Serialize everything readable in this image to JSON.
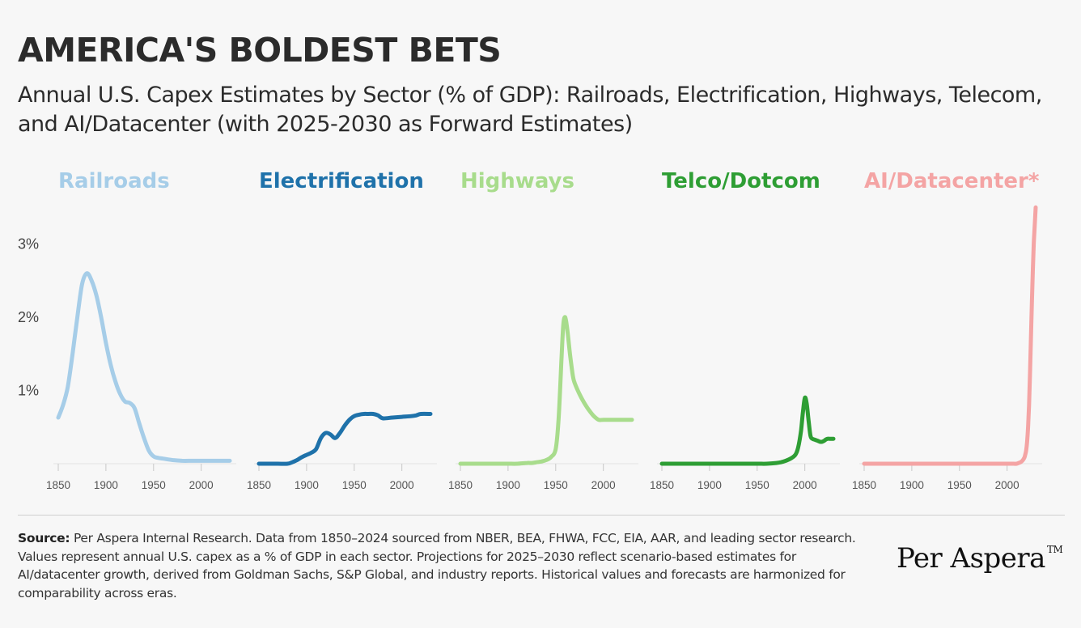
{
  "header": {
    "title": "AMERICA'S BOLDEST BETS",
    "subtitle": "Annual U.S. Capex Estimates by Sector (% of GDP): Railroads, Electrification, Highways, Telecom, and AI/Datacenter (with 2025-2030 as Forward Estimates)"
  },
  "chart_data": {
    "type": "line",
    "layout": "small-multiples",
    "x_ticks": [
      1850,
      1900,
      1950,
      2000
    ],
    "xlim": [
      1850,
      2030
    ],
    "y_ticks": [
      1,
      2,
      3
    ],
    "y_tick_labels": [
      "1%",
      "2%",
      "3%"
    ],
    "ylim": [
      0,
      3.5
    ],
    "grid": false,
    "series": [
      {
        "name": "Railroads",
        "color": "#a6cde8",
        "x": [
          1850,
          1855,
          1860,
          1865,
          1870,
          1875,
          1880,
          1885,
          1890,
          1895,
          1900,
          1905,
          1910,
          1915,
          1920,
          1925,
          1930,
          1935,
          1940,
          1945,
          1950,
          1955,
          1960,
          1970,
          1980,
          1990,
          2000,
          2010,
          2020,
          2030
        ],
        "y": [
          0.63,
          0.8,
          1.05,
          1.5,
          2.0,
          2.45,
          2.6,
          2.5,
          2.3,
          2.0,
          1.65,
          1.35,
          1.12,
          0.95,
          0.85,
          0.83,
          0.76,
          0.55,
          0.35,
          0.18,
          0.1,
          0.08,
          0.07,
          0.05,
          0.04,
          0.04,
          0.04,
          0.04,
          0.04,
          0.04
        ]
      },
      {
        "name": "Electrification",
        "color": "#1f72aa",
        "x": [
          1850,
          1860,
          1870,
          1880,
          1885,
          1890,
          1895,
          1900,
          1905,
          1910,
          1915,
          1920,
          1925,
          1930,
          1935,
          1940,
          1945,
          1950,
          1955,
          1960,
          1965,
          1970,
          1975,
          1980,
          1990,
          2000,
          2010,
          2015,
          2020,
          2030
        ],
        "y": [
          0.0,
          0.0,
          0.0,
          0.0,
          0.02,
          0.05,
          0.09,
          0.12,
          0.15,
          0.2,
          0.35,
          0.42,
          0.4,
          0.35,
          0.42,
          0.52,
          0.6,
          0.65,
          0.67,
          0.68,
          0.68,
          0.68,
          0.66,
          0.62,
          0.63,
          0.64,
          0.65,
          0.66,
          0.68,
          0.68
        ]
      },
      {
        "name": "Highways",
        "color": "#a8dc8c",
        "x": [
          1850,
          1860,
          1870,
          1880,
          1890,
          1900,
          1910,
          1920,
          1925,
          1930,
          1935,
          1940,
          1945,
          1950,
          1953,
          1956,
          1958,
          1960,
          1962,
          1965,
          1968,
          1970,
          1975,
          1980,
          1985,
          1990,
          1995,
          2000,
          2010,
          2030
        ],
        "y": [
          0.0,
          0.0,
          0.0,
          0.0,
          0.0,
          0.0,
          0.0,
          0.01,
          0.01,
          0.02,
          0.03,
          0.05,
          0.09,
          0.2,
          0.6,
          1.4,
          1.9,
          2.0,
          1.85,
          1.5,
          1.2,
          1.1,
          0.95,
          0.83,
          0.73,
          0.65,
          0.6,
          0.6,
          0.6,
          0.6
        ]
      },
      {
        "name": "Telco/Dotcom",
        "color": "#2e9e34",
        "x": [
          1850,
          1870,
          1890,
          1910,
          1930,
          1950,
          1960,
          1970,
          1975,
          1980,
          1985,
          1990,
          1993,
          1996,
          1998,
          2000,
          2002,
          2004,
          2006,
          2008,
          2010,
          2012,
          2014,
          2016,
          2018,
          2020,
          2022,
          2024,
          2026,
          2030
        ],
        "y": [
          0.0,
          0.0,
          0.0,
          0.0,
          0.0,
          0.0,
          0.0,
          0.01,
          0.02,
          0.04,
          0.07,
          0.12,
          0.22,
          0.45,
          0.7,
          0.9,
          0.82,
          0.58,
          0.38,
          0.34,
          0.33,
          0.32,
          0.31,
          0.3,
          0.3,
          0.31,
          0.33,
          0.34,
          0.34,
          0.34
        ]
      },
      {
        "name": "AI/Datacenter*",
        "color": "#f4a4a4",
        "x": [
          1850,
          1900,
          1950,
          2000,
          2005,
          2010,
          2012,
          2014,
          2016,
          2018,
          2019,
          2020,
          2021,
          2022,
          2023,
          2024,
          2025,
          2026,
          2027,
          2028,
          2029,
          2030
        ],
        "y": [
          0.0,
          0.0,
          0.0,
          0.0,
          0.0,
          0.0,
          0.01,
          0.02,
          0.04,
          0.08,
          0.12,
          0.18,
          0.3,
          0.5,
          0.8,
          1.2,
          1.7,
          2.2,
          2.65,
          3.0,
          3.25,
          3.5
        ]
      }
    ]
  },
  "footer": {
    "source_label": "Source:",
    "source_text": "Per Aspera Internal Research. Data from 1850–2024 sourced from NBER, BEA, FHWA, FCC, EIA, AAR, and leading sector research. Values represent annual U.S. capex as a % of GDP in each sector. Projections for 2025–2030 reflect scenario-based estimates for AI/datacenter growth, derived from Goldman Sachs, S&P Global, and industry reports. Historical values and forecasts are harmonized for comparability across eras.",
    "brand": "Per Aspera",
    "brand_mark": "TM"
  }
}
